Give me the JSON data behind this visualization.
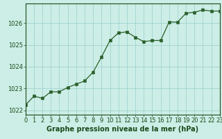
{
  "x": [
    0,
    1,
    2,
    3,
    4,
    5,
    6,
    7,
    8,
    9,
    10,
    11,
    12,
    13,
    14,
    15,
    16,
    17,
    18,
    19,
    20,
    21,
    22,
    23
  ],
  "y": [
    1022.25,
    1022.65,
    1022.55,
    1022.85,
    1022.85,
    1023.05,
    1023.2,
    1023.35,
    1023.75,
    1024.45,
    1025.2,
    1025.55,
    1025.6,
    1025.35,
    1025.15,
    1025.2,
    1025.2,
    1026.05,
    1026.05,
    1026.45,
    1026.5,
    1026.6,
    1026.55,
    1026.55
  ],
  "line_color": "#2a5f2a",
  "marker_color": "#2a5f2a",
  "bg_color": "#cceee6",
  "grid_color": "#99cccc",
  "axis_color": "#1a4a1a",
  "text_color": "#1a4a1a",
  "xlabel": "Graphe pression niveau de la mer (hPa)",
  "xlim": [
    0,
    23
  ],
  "ylim": [
    1021.8,
    1026.9
  ],
  "yticks": [
    1022,
    1023,
    1024,
    1025,
    1026
  ],
  "xticks": [
    0,
    1,
    2,
    3,
    4,
    5,
    6,
    7,
    8,
    9,
    10,
    11,
    12,
    13,
    14,
    15,
    16,
    17,
    18,
    19,
    20,
    21,
    22,
    23
  ],
  "xlabel_fontsize": 7.0,
  "tick_fontsize": 6.0
}
